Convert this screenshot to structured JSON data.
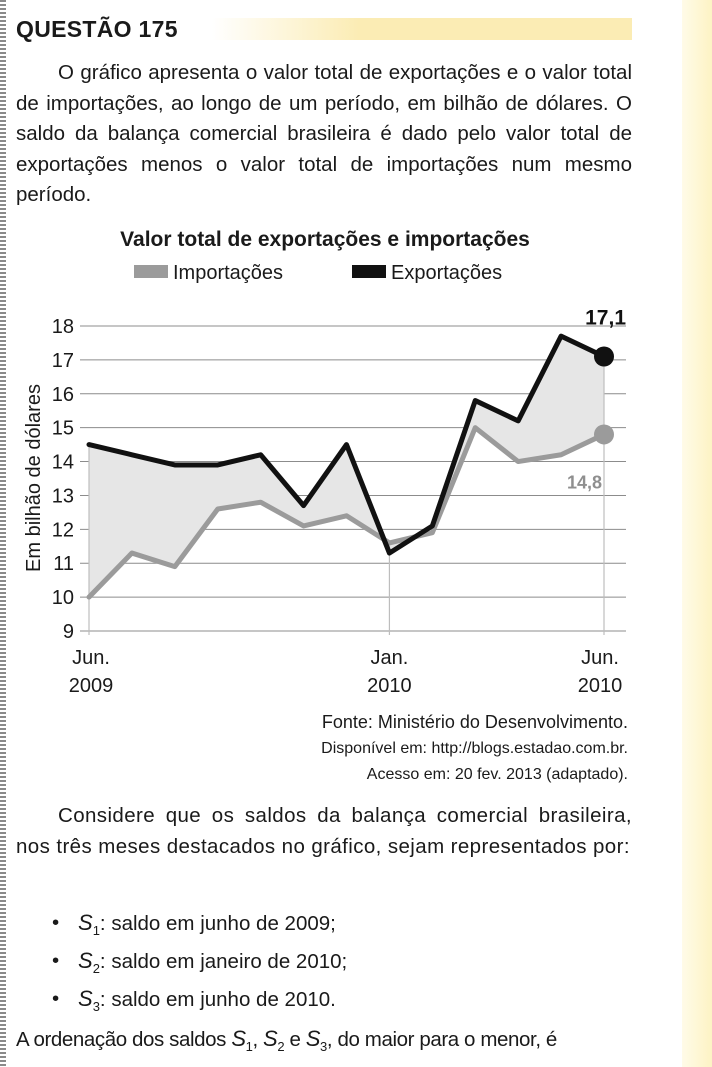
{
  "header": {
    "title": "QUESTÃO 175"
  },
  "intro": "O gráfico apresenta o valor total de exportações e o valor total de importações, ao longo de um período, em bilhão de dólares. O saldo da balança comercial brasileira é dado pelo valor total de exportações menos o valor total de importações num mesmo período.",
  "chart_data": {
    "type": "area",
    "title": "Valor total de exportações e importações",
    "ylabel": "Em bilhão de dólares",
    "xlabel": "",
    "ylim": [
      9,
      18
    ],
    "yticks": [
      "18",
      "17",
      "16",
      "15",
      "14",
      "13",
      "12",
      "11",
      "10",
      "9"
    ],
    "x_tick_labels": [
      {
        "month": "Jun.",
        "year": "2009"
      },
      {
        "month": "Jan.",
        "year": "2010"
      },
      {
        "month": "Jun.",
        "year": "2010"
      }
    ],
    "x": [
      "Jun. 2009",
      "Jul. 2009",
      "Ago. 2009",
      "Set. 2009",
      "Out. 2009",
      "Nov. 2009",
      "Dez. 2009",
      "Jan. 2010",
      "Fev. 2010",
      "Mar. 2010",
      "Abr. 2010",
      "Mai. 2010",
      "Jun. 2010"
    ],
    "grid": true,
    "legend": "top",
    "series": [
      {
        "name": "Importações",
        "color": "#9b9b9b",
        "values": [
          10.0,
          11.3,
          10.9,
          12.6,
          12.8,
          12.1,
          12.4,
          11.6,
          11.9,
          15.0,
          14.0,
          14.2,
          14.8
        ]
      },
      {
        "name": "Exportações",
        "color": "#111111",
        "values": [
          14.5,
          14.2,
          13.9,
          13.9,
          14.2,
          12.7,
          14.5,
          11.3,
          12.1,
          15.8,
          15.2,
          17.7,
          17.1
        ]
      }
    ],
    "annotations": [
      {
        "text": "17,1",
        "series": "Exportações",
        "value": 17.1
      },
      {
        "text": "14,8",
        "series": "Importações",
        "value": 14.8
      }
    ],
    "fill_color": "#e6e6e6"
  },
  "source": {
    "line1": "Fonte: Ministério do Desenvolvimento.",
    "line2": "Disponível em: http://blogs.estadao.com.br.",
    "line3": "Acesso em: 20 fev. 2013 (adaptado)."
  },
  "consider": "Considere que os saldos da balança comercial brasileira, nos três meses destacados no gráfico, sejam representados por:",
  "bullets": [
    {
      "var": "S",
      "sub": "1",
      "text": ": saldo em junho de 2009;"
    },
    {
      "var": "S",
      "sub": "2",
      "text": ": saldo em janeiro de 2010;"
    },
    {
      "var": "S",
      "sub": "3",
      "text": ": saldo em junho de 2010."
    }
  ],
  "bullet_symbol": "•",
  "final": {
    "pre": "A ordenação dos saldos ",
    "v1": "S",
    "s1": "1",
    "sep1": ", ",
    "v2": "S",
    "s2": "2",
    "sep2": " e ",
    "v3": "S",
    "s3": "3",
    "post": ", do maior para o menor, é"
  }
}
